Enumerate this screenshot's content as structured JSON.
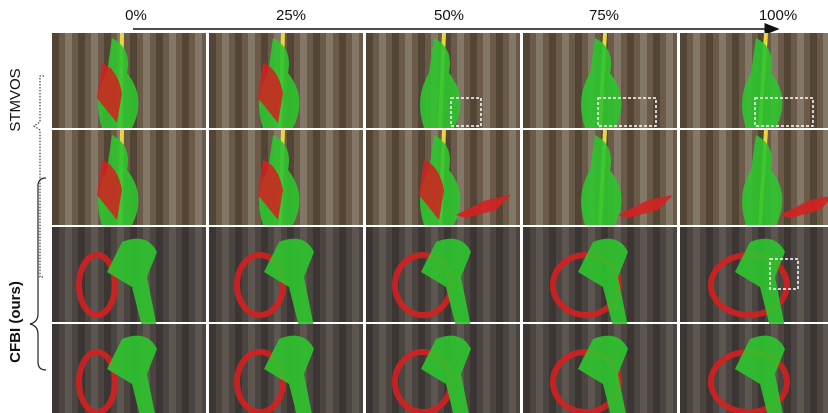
{
  "header": {
    "columns": [
      "0%",
      "25%",
      "50%",
      "75%",
      "100%"
    ]
  },
  "labels": {
    "stmvos": "STMVOS",
    "cfbi": "CFBI (ours)"
  }
}
